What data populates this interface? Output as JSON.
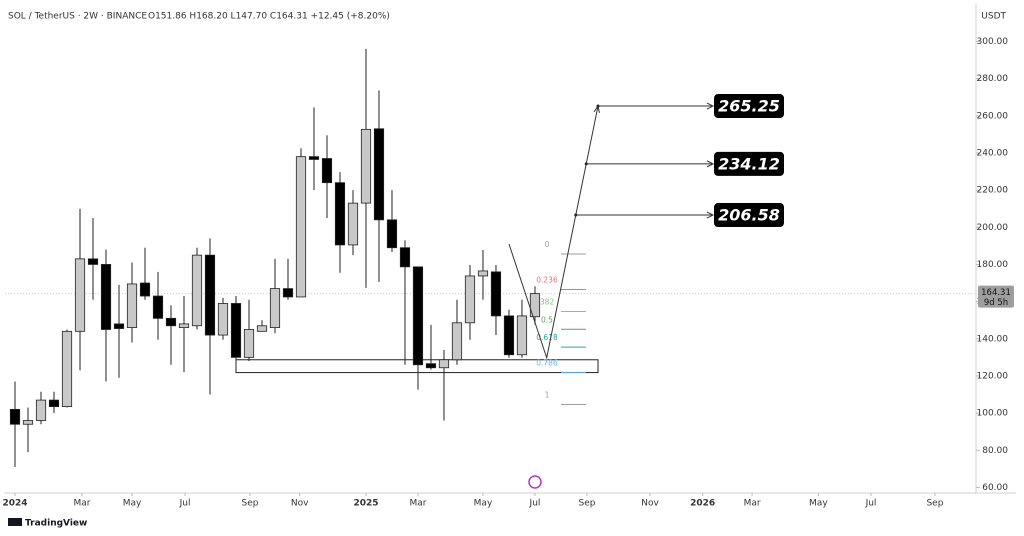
{
  "chart_data": {
    "type": "candlestick",
    "title": "SOL / TetherUS · 2W · BINANCE",
    "subtitle": "O151.86 H168.20 L147.70 C164.31 +12.45 (+8.20%)",
    "currency": "USDT",
    "categories": [
      null,
      null,
      null,
      null,
      null,
      null,
      null,
      null,
      null,
      null,
      null,
      null,
      null,
      null,
      null,
      null,
      null,
      null,
      null,
      null,
      null,
      null,
      null,
      null,
      null,
      null,
      null,
      null,
      null,
      null,
      null,
      null,
      null,
      null,
      null,
      null,
      null,
      null,
      null,
      null,
      null
    ],
    "open": [
      102,
      94,
      96,
      107,
      103.5,
      144,
      183,
      180,
      148,
      146,
      170,
      163,
      151,
      146,
      147,
      185,
      142,
      159,
      130,
      144,
      146,
      167,
      162.5,
      238,
      237,
      224,
      190.5,
      213,
      253,
      204,
      189,
      178.7,
      126.6,
      124.4,
      128.7,
      148.6,
      173.8,
      176,
      152.3,
      131.4,
      151.86
    ],
    "high": [
      117,
      103,
      111.5,
      111.5,
      145,
      210,
      205,
      188,
      169,
      181,
      189,
      176,
      158,
      163,
      189,
      194,
      162,
      163,
      161,
      150,
      183,
      183,
      242.5,
      264.5,
      249.5,
      229.7,
      220,
      296,
      273.7,
      220,
      193,
      178.7,
      147.5,
      134,
      161,
      179.7,
      187.8,
      179.7,
      155.6,
      161,
      168.2
    ],
    "low": [
      71,
      79,
      94,
      100,
      103,
      123,
      161,
      117,
      119,
      138,
      161,
      139.5,
      126,
      122,
      145,
      110,
      139.5,
      123,
      128,
      144,
      143,
      161,
      162.5,
      220,
      205,
      175.5,
      185,
      167.4,
      170.6,
      186.7,
      126,
      112.6,
      123.4,
      96,
      126,
      139.5,
      161,
      142,
      129.8,
      129.8,
      147.7
    ],
    "close": [
      94,
      96,
      107,
      103.5,
      144,
      183,
      180,
      145,
      145.5,
      169.5,
      163,
      151,
      147,
      148,
      185,
      142,
      159,
      130,
      145,
      147,
      167,
      162.5,
      238,
      236.5,
      224,
      190.5,
      213,
      252.7,
      204,
      189,
      178.7,
      126,
      124.4,
      128.7,
      148.6,
      173.8,
      176.5,
      152.3,
      131.4,
      152.3,
      164.31
    ],
    "up_color": "#c8c8c8",
    "down_color": "#000000",
    "xlim": [
      -0.77,
      73.85
    ],
    "xticks": [
      {
        "value": 0,
        "label": "2024"
      },
      {
        "value": 5.15,
        "label": "Mar"
      },
      {
        "value": 9,
        "label": "May"
      },
      {
        "value": 13.08,
        "label": "Jul"
      },
      {
        "value": 18.08,
        "label": "Sep"
      },
      {
        "value": 21.9,
        "label": "Nov"
      },
      {
        "value": 27,
        "label": "2025"
      },
      {
        "value": 31,
        "label": "Mar"
      },
      {
        "value": 36,
        "label": "May"
      },
      {
        "value": 40,
        "label": "Jul"
      },
      {
        "value": 44,
        "label": "Sep"
      },
      {
        "value": 48.85,
        "label": "Nov"
      },
      {
        "value": 52.9,
        "label": "2026"
      },
      {
        "value": 56.7,
        "label": "Mar"
      },
      {
        "value": 61.8,
        "label": "May"
      },
      {
        "value": 65.85,
        "label": "Jul"
      },
      {
        "value": 70.77,
        "label": "Sep"
      }
    ],
    "ylim": [
      57,
      318
    ],
    "yticks": [
      {
        "value": 300,
        "label": "300.00"
      },
      {
        "value": 280,
        "label": "280.00"
      },
      {
        "value": 260,
        "label": "260.00"
      },
      {
        "value": 240,
        "label": "240.00"
      },
      {
        "value": 220,
        "label": "220.00"
      },
      {
        "value": 200,
        "label": "200.00"
      },
      {
        "value": 180,
        "label": "180.00"
      },
      {
        "value": 160,
        "label": "160.00"
      },
      {
        "value": 140,
        "label": "140.00"
      },
      {
        "value": 120,
        "label": "120.00"
      },
      {
        "value": 100,
        "label": "100.00"
      },
      {
        "value": 80,
        "label": "80.00"
      },
      {
        "value": 60,
        "label": "60.00"
      }
    ],
    "current_price": 164.31,
    "countdown": "9d 5h",
    "zone": {
      "x": [
        17,
        44.85
      ],
      "values": [
        121.8,
        128.7
      ]
    },
    "fib": [
      {
        "label": "0",
        "value": 185.6,
        "color": "#9e9e9e"
      },
      {
        "label": "0.236",
        "value": 166.5,
        "color": "#e57373"
      },
      {
        "label": "382",
        "value": 154.7,
        "color": "#81c784"
      },
      {
        "label": "0.5",
        "value": 145.1,
        "color": "#4caf50"
      },
      {
        "label": "0.618",
        "value": 135.5,
        "color": "#26a69a"
      },
      {
        "label": "0.786",
        "value": 121.9,
        "color": "#64b5f6"
      },
      {
        "label": "1",
        "value": 104.6,
        "color": "#9e9e9e"
      }
    ],
    "projection": {
      "x": [
        38,
        40.9,
        44.85
      ],
      "values": [
        191,
        129.8,
        265.25
      ]
    },
    "targets": [
      265.25,
      234.12,
      206.58
    ]
  },
  "brand": "TradingView"
}
